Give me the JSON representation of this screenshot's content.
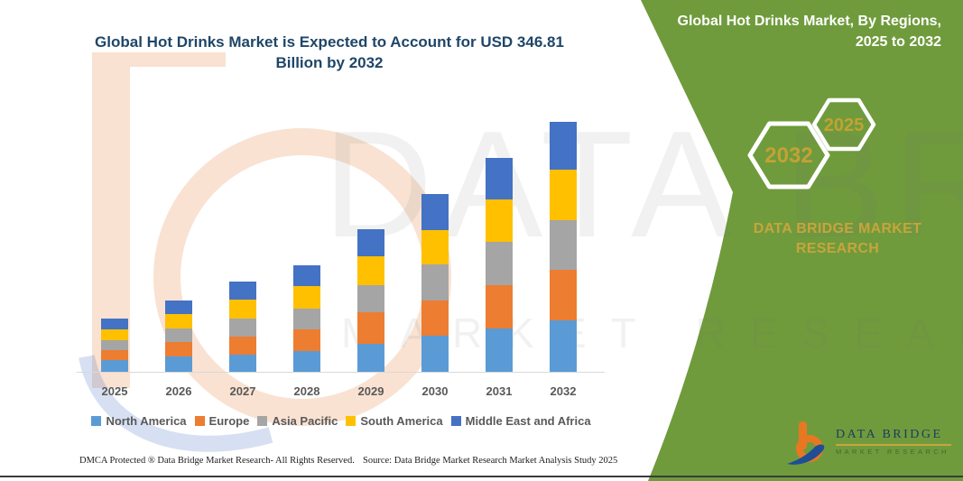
{
  "title": "Global Hot Drinks Market is Expected to Account for USD 346.81 Billion by 2032",
  "side_panel": {
    "heading": "Global Hot Drinks Market, By Regions, 2025 to 2032",
    "hexagons": [
      {
        "label": "2032"
      },
      {
        "label": "2025"
      }
    ],
    "brand": "DATA BRIDGE MARKET RESEARCH",
    "background_color": "#6f9b3c",
    "accent_gold": "#c8a43c"
  },
  "watermark": {
    "line1": "DATA BRIDGE",
    "line2": "MARKET RESEARCH"
  },
  "logo": {
    "name": "DATA BRIDGE",
    "subtitle": "MARKET RESEARCH"
  },
  "footer": {
    "left": "DMCA Protected ® Data Bridge Market Research-  All Rights Reserved.",
    "right": "Source: Data Bridge Market Research  Market Analysis Study 2025"
  },
  "chart_data": {
    "type": "bar",
    "stacked": true,
    "title": "Global Hot Drinks Market is Expected to Account for USD 346.81 Billion by 2032",
    "unit": "USD Billion",
    "categories": [
      "2025",
      "2026",
      "2027",
      "2028",
      "2029",
      "2030",
      "2031",
      "2032"
    ],
    "series": [
      {
        "name": "North America",
        "color": "#5B9BD5",
        "values": [
          15.8,
          20.8,
          24.1,
          29.1,
          38.8,
          49.7,
          60.4,
          70.9
        ]
      },
      {
        "name": "Europe",
        "color": "#ED7D31",
        "values": [
          14.3,
          20.9,
          25.0,
          29.1,
          43.3,
          49.7,
          59.3,
          70.8
        ]
      },
      {
        "name": "Asia Pacific",
        "color": "#A5A5A5",
        "values": [
          13.8,
          18.8,
          25.0,
          29.1,
          37.5,
          50.0,
          60.8,
          68.8
        ]
      },
      {
        "name": "South America",
        "color": "#FFC000",
        "values": [
          15.4,
          19.6,
          25.9,
          30.9,
          40.9,
          47.5,
          58.0,
          69.7
        ]
      },
      {
        "name": "Middle East and Africa",
        "color": "#4472C4",
        "values": [
          15.0,
          19.1,
          25.0,
          29.6,
          37.5,
          50.0,
          58.3,
          66.6
        ]
      }
    ],
    "totals": [
      74.3,
      99.2,
      125.0,
      147.8,
      198.0,
      246.9,
      296.8,
      346.81
    ],
    "xlabel": "",
    "ylabel": "",
    "ylim": [
      0,
      360
    ],
    "gridlines": false,
    "y_axis_visible": false,
    "legend_position": "bottom"
  }
}
